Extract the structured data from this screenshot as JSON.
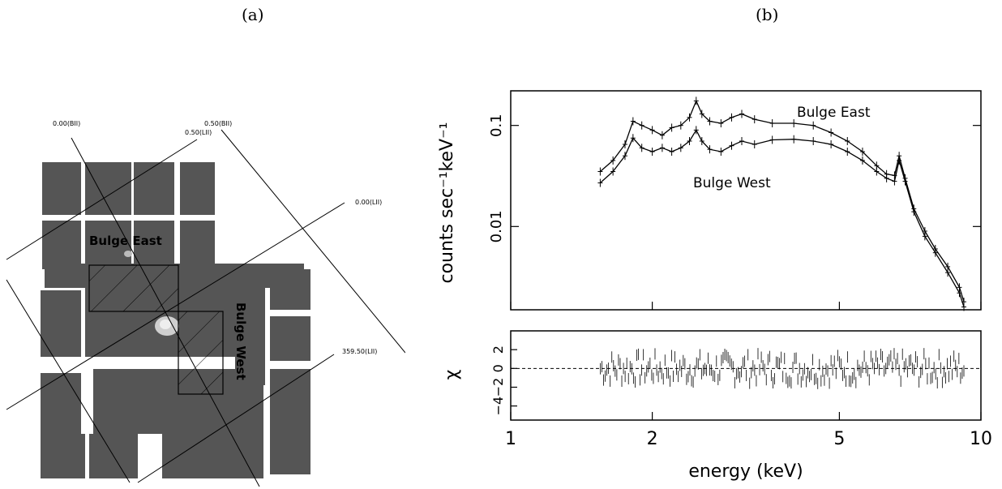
{
  "panels": {
    "a_label": "(a)",
    "b_label": "(b)"
  },
  "map": {
    "grid_labels": [
      "0.00(BII)",
      "0.50(BII)",
      "0.50(LII)",
      "0.00(LII)",
      "359.50(LII)"
    ],
    "region_labels": {
      "east": "Bulge East",
      "west": "Bulge West"
    },
    "colors": {
      "ccd": "#555555",
      "source": "#cfcfcf"
    }
  },
  "chart_data": [
    {
      "type": "line",
      "panel": "spectrum",
      "xscale": "log",
      "yscale": "log",
      "xlim": [
        1,
        10
      ],
      "ylim": [
        0.0015,
        0.22
      ],
      "xlabel": "energy (keV)",
      "ylabel": "counts sec⁻¹keV⁻¹",
      "y_ticks": [
        0.01,
        0.1
      ],
      "y_tick_labels": [
        "0.01",
        "0.1"
      ],
      "series": [
        {
          "name": "Bulge East",
          "x": [
            1.55,
            1.65,
            1.75,
            1.82,
            1.9,
            2.0,
            2.1,
            2.2,
            2.3,
            2.4,
            2.48,
            2.55,
            2.65,
            2.8,
            2.95,
            3.1,
            3.3,
            3.6,
            4.0,
            4.4,
            4.8,
            5.2,
            5.6,
            6.0,
            6.3,
            6.55,
            6.7,
            6.9,
            7.2,
            7.6,
            8.0,
            8.5,
            9.0,
            9.2
          ],
          "y": [
            0.035,
            0.045,
            0.065,
            0.11,
            0.1,
            0.09,
            0.08,
            0.095,
            0.1,
            0.12,
            0.175,
            0.13,
            0.11,
            0.105,
            0.12,
            0.13,
            0.115,
            0.105,
            0.105,
            0.1,
            0.085,
            0.07,
            0.055,
            0.04,
            0.033,
            0.032,
            0.05,
            0.03,
            0.015,
            0.009,
            0.006,
            0.004,
            0.0025,
            0.0018
          ]
        },
        {
          "name": "Bulge West",
          "x": [
            1.55,
            1.65,
            1.75,
            1.82,
            1.9,
            2.0,
            2.1,
            2.2,
            2.3,
            2.4,
            2.48,
            2.55,
            2.65,
            2.8,
            2.95,
            3.1,
            3.3,
            3.6,
            4.0,
            4.4,
            4.8,
            5.2,
            5.6,
            6.0,
            6.3,
            6.55,
            6.7,
            6.9,
            7.2,
            7.6,
            8.0,
            8.5,
            9.0,
            9.2
          ],
          "y": [
            0.027,
            0.035,
            0.05,
            0.075,
            0.06,
            0.055,
            0.06,
            0.055,
            0.06,
            0.07,
            0.09,
            0.07,
            0.058,
            0.055,
            0.063,
            0.07,
            0.065,
            0.072,
            0.073,
            0.07,
            0.065,
            0.055,
            0.045,
            0.035,
            0.03,
            0.028,
            0.045,
            0.028,
            0.014,
            0.008,
            0.0055,
            0.0035,
            0.0022,
            0.0016
          ]
        }
      ],
      "annotations": [
        "Bulge East",
        "Bulge West"
      ]
    },
    {
      "type": "scatter",
      "panel": "residuals",
      "xscale": "log",
      "xlim": [
        1,
        10
      ],
      "ylim": [
        -5.5,
        4
      ],
      "ylabel": "χ",
      "xlabel": "energy (keV)",
      "x_ticks": [
        1,
        2,
        5,
        10
      ],
      "x_tick_labels": [
        "1",
        "2",
        "5",
        "10"
      ],
      "y_ticks": [
        -4,
        -2,
        0,
        2
      ],
      "y_tick_labels": [
        "−4",
        "−2",
        "0",
        "2"
      ],
      "reference_line": 0
    }
  ]
}
